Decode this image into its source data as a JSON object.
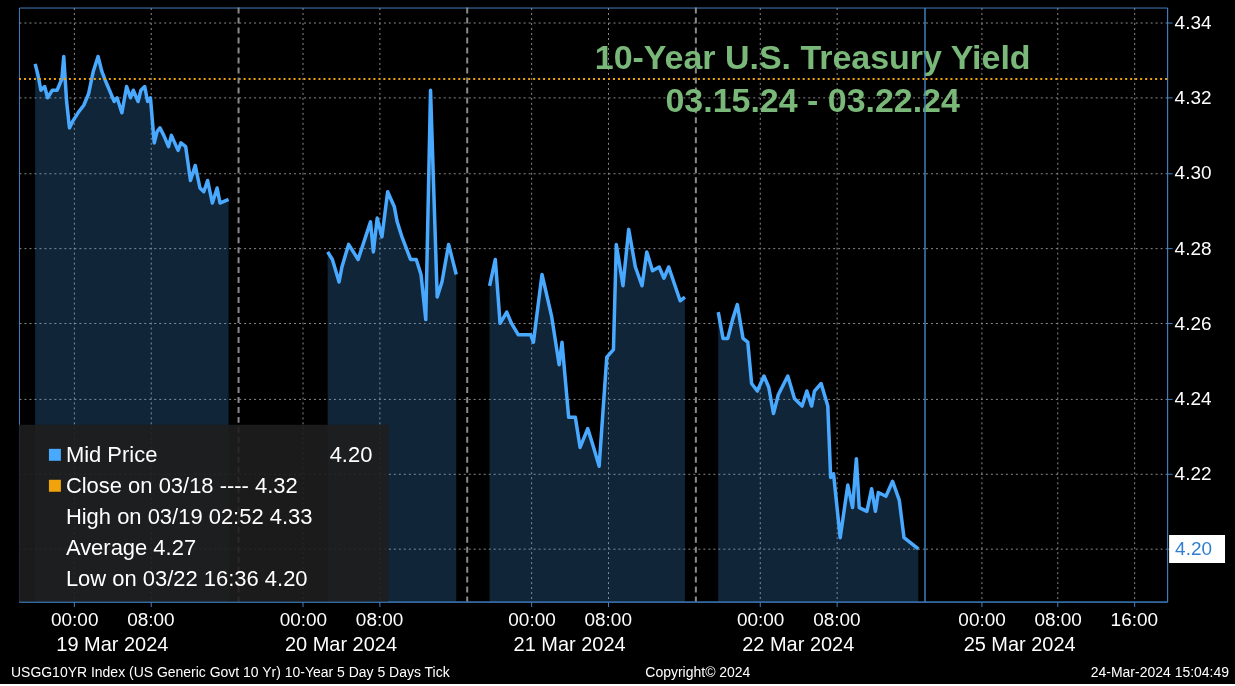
{
  "chart_data": [
    {
      "type": "area",
      "title": "10-Year U.S. Treasury Yield",
      "subtitle": "03.15.24 - 03.22.24",
      "x": [
        "2024-03-18T19:54",
        "2024-03-18T20:12",
        "2024-03-18T20:30",
        "2024-03-18T20:54",
        "2024-03-18T21:12",
        "2024-03-18T21:42",
        "2024-03-18T22:12",
        "2024-03-18T22:42",
        "2024-03-18T22:54",
        "2024-03-18T23:12",
        "2024-03-18T23:30",
        "2024-03-18T23:54",
        "2024-03-19T00:24",
        "2024-03-19T01:00",
        "2024-03-19T01:30",
        "2024-03-19T02:00",
        "2024-03-19T02:30",
        "2024-03-19T02:54",
        "2024-03-19T03:12",
        "2024-03-19T03:42",
        "2024-03-19T04:12",
        "2024-03-19T04:30",
        "2024-03-19T05:00",
        "2024-03-19T05:30",
        "2024-03-19T05:54",
        "2024-03-19T06:12",
        "2024-03-19T06:42",
        "2024-03-19T07:00",
        "2024-03-19T07:24",
        "2024-03-19T07:42",
        "2024-03-19T08:00",
        "2024-03-19T08:24",
        "2024-03-19T08:42",
        "2024-03-19T09:00",
        "2024-03-19T09:24",
        "2024-03-19T09:54",
        "2024-03-19T10:12",
        "2024-03-19T10:54",
        "2024-03-19T11:12",
        "2024-03-19T11:42",
        "2024-03-19T12:12",
        "2024-03-19T12:42",
        "2024-03-19T13:12",
        "2024-03-19T13:36",
        "2024-03-19T14:00",
        "2024-03-19T14:30",
        "2024-03-19T15:00",
        "2024-03-19T15:18",
        "2024-03-19T16:12",
        "2024-03-19T16:42",
        "2024-03-20T02:36",
        "2024-03-20T03:06",
        "2024-03-20T03:48",
        "2024-03-20T04:06",
        "2024-03-20T04:48",
        "2024-03-20T05:48",
        "2024-03-20T07:06",
        "2024-03-20T07:24",
        "2024-03-20T07:48",
        "2024-03-20T08:18",
        "2024-03-20T08:54",
        "2024-03-20T09:36",
        "2024-03-20T09:54",
        "2024-03-20T10:24",
        "2024-03-20T11:18",
        "2024-03-20T11:54",
        "2024-03-20T12:24",
        "2024-03-20T12:54",
        "2024-03-20T13:24",
        "2024-03-20T14:06",
        "2024-03-20T14:36",
        "2024-03-20T15:18",
        "2024-03-20T16:06",
        "2024-03-20T16:36",
        "2024-03-20T19:36",
        "2024-03-20T20:12",
        "2024-03-20T20:42",
        "2024-03-20T21:24",
        "2024-03-20T21:54",
        "2024-03-20T22:36",
        "2024-03-20T23:54",
        "2024-03-21T00:12",
        "2024-03-21T01:06",
        "2024-03-21T02:06",
        "2024-03-21T02:54",
        "2024-03-21T03:12",
        "2024-03-21T03:54",
        "2024-03-21T04:36",
        "2024-03-21T05:06",
        "2024-03-21T05:54",
        "2024-03-21T06:24",
        "2024-03-21T07:06",
        "2024-03-21T07:54",
        "2024-03-21T08:36",
        "2024-03-21T08:54",
        "2024-03-21T09:36",
        "2024-03-21T10:12",
        "2024-03-21T10:54",
        "2024-03-21T11:36",
        "2024-03-21T12:06",
        "2024-03-21T12:42",
        "2024-03-21T13:24",
        "2024-03-21T13:54",
        "2024-03-21T14:24",
        "2024-03-21T15:36",
        "2024-03-21T16:06",
        "2024-03-21T16:54",
        "2024-03-21T19:36",
        "2024-03-21T20:06",
        "2024-03-21T20:36",
        "2024-03-21T21:06",
        "2024-03-21T21:36",
        "2024-03-21T22:12",
        "2024-03-21T22:42",
        "2024-03-21T23:06",
        "2024-03-21T23:42",
        "2024-03-22T00:24",
        "2024-03-22T00:54",
        "2024-03-22T01:24",
        "2024-03-22T01:54",
        "2024-03-22T02:54",
        "2024-03-22T03:36",
        "2024-03-22T04:24",
        "2024-03-22T04:54",
        "2024-03-22T05:24",
        "2024-03-22T05:42",
        "2024-03-22T06:24",
        "2024-03-22T07:06",
        "2024-03-22T07:24",
        "2024-03-22T07:42",
        "2024-03-22T08:24",
        "2024-03-22T09:12",
        "2024-03-22T09:42",
        "2024-03-22T10:06",
        "2024-03-22T10:24",
        "2024-03-22T11:12",
        "2024-03-22T11:42",
        "2024-03-22T12:06",
        "2024-03-22T12:24",
        "2024-03-22T13:12",
        "2024-03-22T13:54",
        "2024-03-22T14:36",
        "2024-03-22T15:06",
        "2024-03-22T16:36"
      ],
      "series": [
        {
          "name": "Mid Price",
          "color": "#49a9ff",
          "values": [
            4.329,
            4.326,
            4.322,
            4.323,
            4.32,
            4.322,
            4.322,
            4.325,
            4.331,
            4.319,
            4.312,
            4.314,
            4.316,
            4.318,
            4.321,
            4.327,
            4.331,
            4.327,
            4.325,
            4.322,
            4.319,
            4.32,
            4.316,
            4.323,
            4.32,
            4.322,
            4.319,
            4.322,
            4.323,
            4.319,
            4.32,
            4.308,
            4.311,
            4.312,
            4.31,
            4.307,
            4.31,
            4.306,
            4.308,
            4.307,
            4.298,
            4.302,
            4.296,
            4.295,
            4.298,
            4.292,
            4.296,
            4.292,
            4.293,
            null,
            4.279,
            4.277,
            4.271,
            4.275,
            4.281,
            4.277,
            4.287,
            4.279,
            4.288,
            4.283,
            4.295,
            4.291,
            4.287,
            4.283,
            4.277,
            4.277,
            4.273,
            4.261,
            4.322,
            4.267,
            4.271,
            4.281,
            4.273,
            null,
            4.27,
            4.277,
            4.26,
            4.263,
            4.26,
            4.257,
            4.257,
            4.255,
            4.273,
            4.262,
            4.249,
            4.255,
            4.235,
            4.235,
            4.227,
            4.232,
            4.228,
            4.222,
            4.251,
            4.253,
            4.281,
            4.27,
            4.285,
            4.275,
            4.27,
            4.279,
            4.274,
            4.275,
            4.272,
            4.275,
            4.266,
            4.267,
            null,
            4.263,
            4.256,
            4.256,
            4.261,
            4.265,
            4.256,
            4.255,
            4.244,
            4.242,
            4.246,
            4.243,
            4.236,
            4.241,
            4.246,
            4.24,
            4.238,
            4.242,
            4.238,
            4.242,
            4.244,
            4.238,
            4.219,
            4.22,
            4.203,
            4.217,
            4.211,
            4.224,
            4.211,
            4.21,
            4.216,
            4.21,
            4.215,
            4.214,
            4.218,
            4.213,
            4.203,
            4.2
          ]
        }
      ],
      "xlim": [
        "2024-03-18T18:12",
        "2024-03-22T17:15"
      ],
      "xticks": [
        {
          "value": "2024-03-19T00:00",
          "label": "00:00"
        },
        {
          "value": "2024-03-19T08:00",
          "label": "08:00"
        },
        {
          "value": "2024-03-20T00:00",
          "label": "00:00"
        },
        {
          "value": "2024-03-20T08:00",
          "label": "08:00"
        },
        {
          "value": "2024-03-21T00:00",
          "label": "00:00"
        },
        {
          "value": "2024-03-21T08:00",
          "label": "08:00"
        },
        {
          "value": "2024-03-22T00:00",
          "label": "00:00"
        },
        {
          "value": "2024-03-22T08:00",
          "label": "08:00"
        }
      ],
      "ylim": [
        4.186,
        4.344
      ],
      "yticks": [
        4.2,
        4.22,
        4.24,
        4.26,
        4.28,
        4.3,
        4.32,
        4.34
      ],
      "tick_labels": "x",
      "grid": true,
      "legend": "bottom left",
      "ref_lines": [
        {
          "axis": "y",
          "value": 4.325,
          "label": "Close on 03/18 ---- 4.32",
          "color": "#f0a30a",
          "line_style": "dotted"
        },
        {
          "axis": "x",
          "value": "2024-03-19T17:15",
          "color": "#8a8a8a",
          "line_style": "dashed"
        },
        {
          "axis": "x",
          "value": "2024-03-20T17:15",
          "color": "#8a8a8a",
          "line_style": "dashed"
        },
        {
          "axis": "x",
          "value": "2024-03-21T17:15",
          "color": "#8a8a8a",
          "line_style": "dashed"
        }
      ],
      "annotations": [
        "4.20",
        "High on 03/19 02:52 4.33",
        "Average 4.27",
        "Low on 03/22 16:36 4.20",
        "19 Mar 2024",
        "20 Mar 2024",
        "21 Mar 2024",
        "22 Mar 2024",
        "USGG10YR Index (US Generic Govt 10 Yr) 10-Year 5 Day 5 Days  Tick",
        "Copyright© 2024"
      ]
    },
    {
      "type": "area",
      "xlim": [
        "2024-03-24T18:00",
        "2024-03-25T19:30"
      ],
      "xticks": [
        {
          "value": "2024-03-25T00:00",
          "label": "00:00"
        },
        {
          "value": "2024-03-25T08:00",
          "label": "08:00"
        },
        {
          "value": "2024-03-25T16:00",
          "label": "16:00"
        }
      ],
      "ylim": [
        4.186,
        4.344
      ],
      "yticks": [
        {
          "value": 4.2,
          "label": null
        },
        {
          "value": 4.22,
          "label": "4.22"
        },
        {
          "value": 4.24,
          "label": "4.24"
        },
        {
          "value": 4.26,
          "label": "4.26"
        },
        {
          "value": 4.28,
          "label": "4.28"
        },
        {
          "value": 4.3,
          "label": "4.30"
        },
        {
          "value": 4.32,
          "label": "4.32"
        },
        {
          "value": 4.34,
          "label": "4.34"
        }
      ],
      "grid": true,
      "ref_lines": [
        {
          "axis": "y",
          "value": 4.325,
          "color": "#f0a30a",
          "line_style": "dotted"
        }
      ],
      "annotations": [
        "4.20",
        "25 Mar 2024",
        "24-Mar-2024 15:04:49"
      ]
    }
  ]
}
